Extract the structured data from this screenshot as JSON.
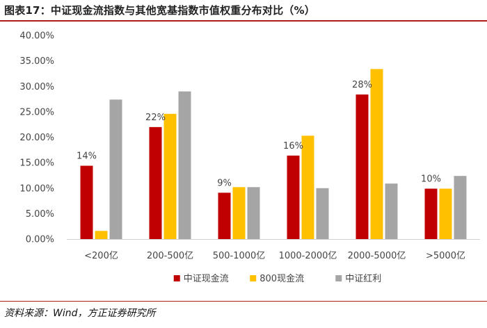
{
  "header": {
    "title": "图表17：中证现金流指数与其他宽基指数市值权重分布对比（%）"
  },
  "footer": {
    "source": "资料来源：Wind，方正证券研究所"
  },
  "chart_data": {
    "type": "bar",
    "title": "",
    "xlabel": "",
    "ylabel": "",
    "ylim": [
      0,
      40
    ],
    "ytick_step": 5,
    "ytick_format": "percent_2dp",
    "grid": false,
    "legend_position": "bottom",
    "categories": [
      "<200亿",
      "200-500亿",
      "500-1000亿",
      "1000-2000亿",
      "2000-5000亿",
      ">5000亿"
    ],
    "series": [
      {
        "name": "中证现金流",
        "color": "#C00000",
        "values": [
          14.4,
          22.0,
          9.1,
          16.4,
          28.4,
          9.9
        ]
      },
      {
        "name": "800现金流",
        "color": "#FFC000",
        "values": [
          1.6,
          24.6,
          10.2,
          20.3,
          33.4,
          9.9
        ]
      },
      {
        "name": "中证红利",
        "color": "#A5A5A5",
        "values": [
          27.4,
          29.0,
          10.2,
          10.0,
          10.9,
          12.4
        ]
      }
    ],
    "data_labels": [
      {
        "series": 0,
        "category": 0,
        "text": "14%"
      },
      {
        "series": 0,
        "category": 1,
        "text": "22%"
      },
      {
        "series": 0,
        "category": 2,
        "text": "9%"
      },
      {
        "series": 0,
        "category": 3,
        "text": "16%"
      },
      {
        "series": 0,
        "category": 4,
        "text": "28%"
      },
      {
        "series": 0,
        "category": 5,
        "text": "10%"
      }
    ]
  }
}
